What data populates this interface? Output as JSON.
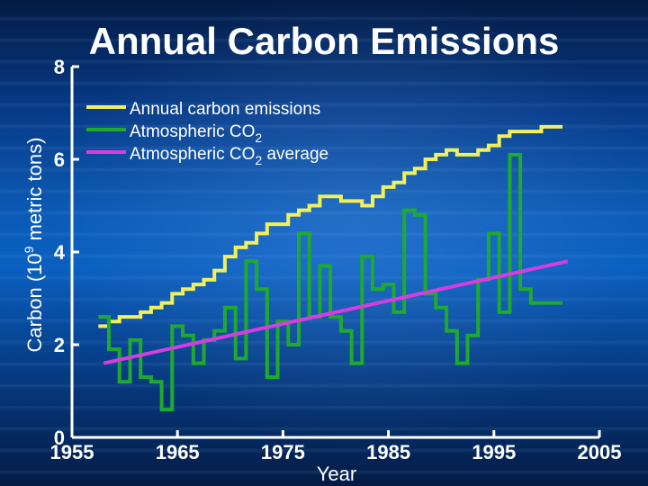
{
  "chart_data": {
    "type": "line",
    "title": "Annual Carbon Emissions",
    "xlabel": "Year",
    "ylabel_main": "Carbon (10",
    "ylabel_exp": "9",
    "ylabel_tail": " metric tons)",
    "xlim": [
      1955,
      2005
    ],
    "ylim": [
      0,
      8
    ],
    "x_ticks": [
      "1955",
      "1965",
      "1975",
      "1985",
      "1995",
      "2005"
    ],
    "y_ticks": [
      "0",
      "2",
      "4",
      "6",
      "8"
    ],
    "legend_position": "top-left",
    "series": [
      {
        "name": "Annual carbon emissions",
        "color": "#f2f05a",
        "style": "step",
        "x": [
          1958,
          1959,
          1960,
          1961,
          1962,
          1963,
          1964,
          1965,
          1966,
          1967,
          1968,
          1969,
          1970,
          1971,
          1972,
          1973,
          1974,
          1975,
          1976,
          1977,
          1978,
          1979,
          1980,
          1981,
          1982,
          1983,
          1984,
          1985,
          1986,
          1987,
          1988,
          1989,
          1990,
          1991,
          1992,
          1993,
          1994,
          1995,
          1996,
          1997,
          1998,
          1999,
          2000,
          2001
        ],
        "values": [
          2.4,
          2.5,
          2.6,
          2.6,
          2.7,
          2.8,
          2.9,
          3.1,
          3.2,
          3.3,
          3.4,
          3.6,
          3.9,
          4.1,
          4.2,
          4.4,
          4.6,
          4.6,
          4.8,
          4.9,
          5.0,
          5.2,
          5.2,
          5.1,
          5.1,
          5.0,
          5.2,
          5.4,
          5.5,
          5.7,
          5.8,
          6.0,
          6.1,
          6.2,
          6.1,
          6.1,
          6.2,
          6.3,
          6.5,
          6.6,
          6.6,
          6.6,
          6.7,
          6.7
        ]
      },
      {
        "name": "Atmospheric CO",
        "name_sub": "2",
        "color": "#1eaa2e",
        "style": "step",
        "x": [
          1958,
          1959,
          1960,
          1961,
          1962,
          1963,
          1964,
          1965,
          1966,
          1967,
          1968,
          1969,
          1970,
          1971,
          1972,
          1973,
          1974,
          1975,
          1976,
          1977,
          1978,
          1979,
          1980,
          1981,
          1982,
          1983,
          1984,
          1985,
          1986,
          1987,
          1988,
          1989,
          1990,
          1991,
          1992,
          1993,
          1994,
          1995,
          1996,
          1997,
          1998,
          1999,
          2000,
          2001
        ],
        "values": [
          2.6,
          1.9,
          1.2,
          2.1,
          1.3,
          1.2,
          0.6,
          2.4,
          2.2,
          1.6,
          2.1,
          2.3,
          2.8,
          1.7,
          3.8,
          3.2,
          1.3,
          2.5,
          2.0,
          4.4,
          2.6,
          3.7,
          2.6,
          2.3,
          1.6,
          3.9,
          3.2,
          3.3,
          2.7,
          4.9,
          4.8,
          3.1,
          2.8,
          2.3,
          1.6,
          2.2,
          3.4,
          4.4,
          2.7,
          6.1,
          3.2,
          2.9,
          2.9,
          2.9
        ]
      },
      {
        "name": "Atmospheric CO",
        "name_sub": "2",
        "name_tail": " average",
        "color": "#d63ddf",
        "style": "linear",
        "x": [
          1958,
          2002
        ],
        "values": [
          1.6,
          3.8
        ]
      }
    ]
  }
}
